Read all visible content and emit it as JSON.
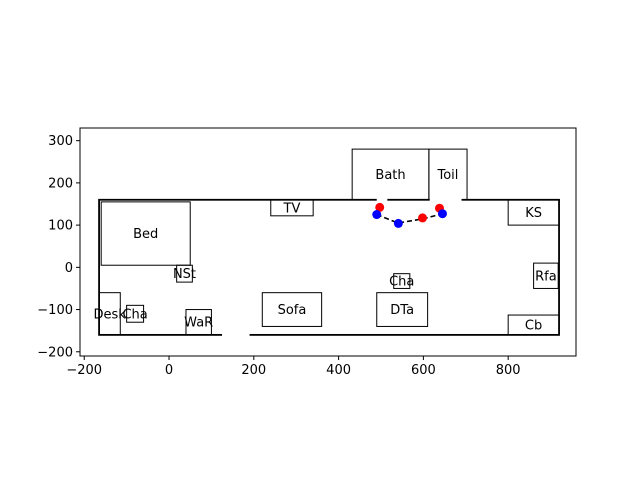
{
  "chart_data": {
    "type": "scatter",
    "xlim": [
      -210,
      960
    ],
    "ylim": [
      -210,
      330
    ],
    "x_ticks": [
      -200,
      0,
      200,
      400,
      600,
      800
    ],
    "y_ticks": [
      -200,
      -100,
      0,
      100,
      200,
      300
    ],
    "grid": false,
    "outer_wall": {
      "x0": -165,
      "y0": -160,
      "x1": 920,
      "y1": 160
    },
    "door_gaps": [
      {
        "x0": 490,
        "x1": 515,
        "y": 160
      },
      {
        "x0": 615,
        "x1": 690,
        "y": 160
      },
      {
        "x0": 125,
        "x1": 190,
        "y": -160
      }
    ],
    "rooms": [
      {
        "label": "Bath",
        "x0": 432,
        "y0": 160,
        "x1": 613,
        "y1": 280
      },
      {
        "label": "Toil",
        "x0": 613,
        "y0": 160,
        "x1": 703,
        "y1": 280
      },
      {
        "label": "Bed",
        "x0": -160,
        "y0": 5,
        "x1": 50,
        "y1": 155
      },
      {
        "label": "TV",
        "x0": 240,
        "y0": 122,
        "x1": 340,
        "y1": 160
      },
      {
        "label": "KS",
        "x0": 800,
        "y0": 100,
        "x1": 920,
        "y1": 160
      },
      {
        "label": "NSt",
        "x0": 18,
        "y0": -35,
        "x1": 55,
        "y1": 5
      },
      {
        "label": "Cha",
        "x0": 530,
        "y0": -50,
        "x1": 568,
        "y1": -15
      },
      {
        "label": "Rfa",
        "x0": 860,
        "y0": -50,
        "x1": 918,
        "y1": 10
      },
      {
        "label": "Desk",
        "x0": -165,
        "y0": -160,
        "x1": -115,
        "y1": -60
      },
      {
        "label": "Cha",
        "x0": -100,
        "y0": -130,
        "x1": -60,
        "y1": -90
      },
      {
        "label": "WaR",
        "x0": 40,
        "y0": -160,
        "x1": 100,
        "y1": -100
      },
      {
        "label": "Sofa",
        "x0": 220,
        "y0": -140,
        "x1": 360,
        "y1": -60
      },
      {
        "label": "DTa",
        "x0": 490,
        "y0": -140,
        "x1": 610,
        "y1": -60
      },
      {
        "label": "Cb",
        "x0": 800,
        "y0": -160,
        "x1": 920,
        "y1": -113
      }
    ],
    "path": {
      "points": [
        [
          490,
          125
        ],
        [
          540,
          105
        ],
        [
          600,
          115
        ],
        [
          645,
          127
        ]
      ],
      "style": "dashed",
      "color": "#000000"
    },
    "series": [
      {
        "color": "#ff0000",
        "points": [
          [
            497,
            142
          ],
          [
            598,
            117
          ],
          [
            638,
            140
          ]
        ]
      },
      {
        "color": "#0000ff",
        "points": [
          [
            490,
            125
          ],
          [
            541,
            104
          ],
          [
            645,
            127
          ]
        ]
      }
    ]
  }
}
